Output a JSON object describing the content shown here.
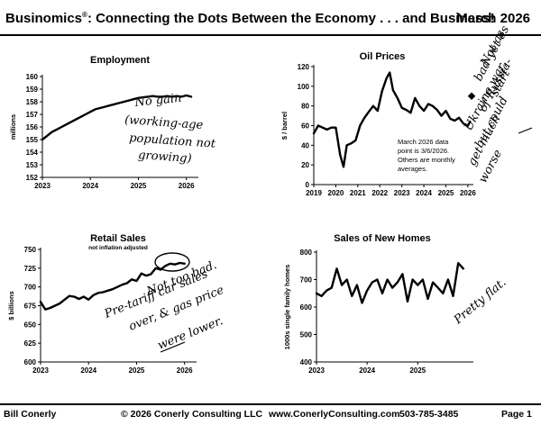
{
  "header": {
    "title_main": "Businomics",
    "registered": "®",
    "title_rest": ": Connecting the Dots Between the Economy . . . and Business!",
    "date": "March 2026"
  },
  "footer": {
    "author": "Bill Conerly",
    "copyright": "© 2026 Conerly Consulting LLC",
    "website": "www.ConerlyConsulting.com",
    "phone": "503-785-3485",
    "page": "Page 1"
  },
  "chart_data": [
    {
      "type": "line",
      "title": "Employment",
      "ylabel": "millions",
      "xlabel": "",
      "ylim": [
        152,
        160
      ],
      "yticks": [
        152,
        153,
        154,
        155,
        156,
        157,
        158,
        159,
        160
      ],
      "xticks": [
        "2023",
        "2024",
        "2025",
        "2026"
      ],
      "xlim": [
        2023,
        2026.25
      ],
      "x": [
        2023.0,
        2023.1,
        2023.2,
        2023.3,
        2023.4,
        2023.5,
        2023.6,
        2023.7,
        2023.8,
        2023.9,
        2024.0,
        2024.1,
        2024.2,
        2024.3,
        2024.4,
        2024.5,
        2024.6,
        2024.7,
        2024.8,
        2024.9,
        2025.0,
        2025.1,
        2025.2,
        2025.3,
        2025.4,
        2025.5,
        2025.6,
        2025.7,
        2025.8,
        2025.9,
        2026.0,
        2026.1
      ],
      "series": [
        {
          "name": "Employment",
          "values": [
            155.0,
            155.3,
            155.6,
            155.8,
            156.0,
            156.2,
            156.4,
            156.6,
            156.8,
            157.0,
            157.2,
            157.4,
            157.5,
            157.6,
            157.7,
            157.8,
            157.9,
            158.0,
            158.1,
            158.2,
            158.3,
            158.35,
            158.4,
            158.45,
            158.4,
            158.4,
            158.45,
            158.4,
            158.45,
            158.4,
            158.5,
            158.4
          ]
        }
      ],
      "annotations": [
        "No gain",
        "(working-age",
        "population not",
        "growing)"
      ]
    },
    {
      "type": "line",
      "title": "Oil Prices",
      "ylabel": "$ / barrel",
      "xlabel": "",
      "ylim": [
        0,
        120
      ],
      "yticks": [
        0,
        20,
        40,
        60,
        80,
        100,
        120
      ],
      "xticks": [
        "2019",
        "2020",
        "2021",
        "2022",
        "2023",
        "2024",
        "2025",
        "2026"
      ],
      "xlim": [
        2019,
        2026.25
      ],
      "x": [
        2019.0,
        2019.2,
        2019.4,
        2019.6,
        2019.8,
        2020.0,
        2020.2,
        2020.35,
        2020.5,
        2020.7,
        2020.9,
        2021.1,
        2021.3,
        2021.5,
        2021.7,
        2021.9,
        2022.1,
        2022.3,
        2022.45,
        2022.6,
        2022.8,
        2023.0,
        2023.2,
        2023.4,
        2023.6,
        2023.8,
        2024.0,
        2024.2,
        2024.4,
        2024.6,
        2024.8,
        2025.0,
        2025.2,
        2025.4,
        2025.6,
        2025.8,
        2026.0,
        2026.1
      ],
      "series": [
        {
          "name": "Oil price",
          "values": [
            52,
            60,
            58,
            56,
            58,
            58,
            30,
            18,
            40,
            42,
            45,
            60,
            68,
            74,
            80,
            75,
            95,
            108,
            114,
            96,
            88,
            78,
            76,
            73,
            88,
            80,
            75,
            82,
            80,
            76,
            70,
            75,
            67,
            65,
            68,
            62,
            60,
            64
          ]
        }
      ],
      "note_point": {
        "x": 2026.17,
        "y": 90
      },
      "info_lines": [
        "March 2026 data",
        "point is 3/6/2026.",
        "Others are monthly",
        "averages."
      ],
      "annotations": [
        "Not as",
        "bad yet as",
        "start",
        "of Russia-",
        "Ukraine war,",
        "but could",
        "get much",
        "worse"
      ]
    },
    {
      "type": "line",
      "title": "Retail Sales",
      "subtitle": "not inflation adjusted",
      "ylabel": "$ billions",
      "xlabel": "",
      "ylim": [
        600,
        750
      ],
      "yticks": [
        600,
        625,
        650,
        675,
        700,
        725,
        750
      ],
      "xticks": [
        "2023",
        "2024",
        "2025",
        "2026"
      ],
      "xlim": [
        2023,
        2026.25
      ],
      "x": [
        2023.0,
        2023.1,
        2023.2,
        2023.3,
        2023.4,
        2023.5,
        2023.6,
        2023.7,
        2023.8,
        2023.9,
        2024.0,
        2024.1,
        2024.2,
        2024.3,
        2024.4,
        2024.5,
        2024.6,
        2024.7,
        2024.8,
        2024.9,
        2025.0,
        2025.1,
        2025.2,
        2025.3,
        2025.4,
        2025.5,
        2025.6,
        2025.7,
        2025.8,
        2025.9,
        2026.0
      ],
      "series": [
        {
          "name": "Retail sales",
          "values": [
            680,
            670,
            672,
            675,
            678,
            683,
            688,
            687,
            684,
            687,
            683,
            689,
            692,
            693,
            695,
            697,
            700,
            703,
            705,
            710,
            708,
            718,
            715,
            717,
            725,
            723,
            728,
            731,
            730,
            732,
            731
          ]
        }
      ],
      "annotations": [
        "Not too bad.",
        "Pre-tariff car sales",
        "over, & gas price",
        "were lower."
      ]
    },
    {
      "type": "line",
      "title": "Sales of New Homes",
      "ylabel": "1000s single family homes",
      "xlabel": "",
      "ylim": [
        400,
        800
      ],
      "yticks": [
        400,
        500,
        600,
        700,
        800
      ],
      "xticks": [
        "2023",
        "2024",
        "2025"
      ],
      "xlim": [
        2023,
        2026.1
      ],
      "x": [
        2023.0,
        2023.1,
        2023.2,
        2023.3,
        2023.4,
        2023.5,
        2023.6,
        2023.7,
        2023.8,
        2023.9,
        2024.0,
        2024.1,
        2024.2,
        2024.3,
        2024.4,
        2024.5,
        2024.6,
        2024.7,
        2024.8,
        2024.9,
        2025.0,
        2025.1,
        2025.2,
        2025.3,
        2025.4,
        2025.5,
        2025.6,
        2025.7,
        2025.8,
        2025.9
      ],
      "series": [
        {
          "name": "New home sales",
          "values": [
            650,
            640,
            660,
            670,
            740,
            680,
            700,
            640,
            680,
            615,
            660,
            690,
            700,
            650,
            700,
            670,
            690,
            720,
            620,
            700,
            680,
            700,
            630,
            690,
            670,
            650,
            700,
            640,
            760,
            740
          ]
        }
      ],
      "annotations": [
        "Pretty flat."
      ]
    }
  ]
}
